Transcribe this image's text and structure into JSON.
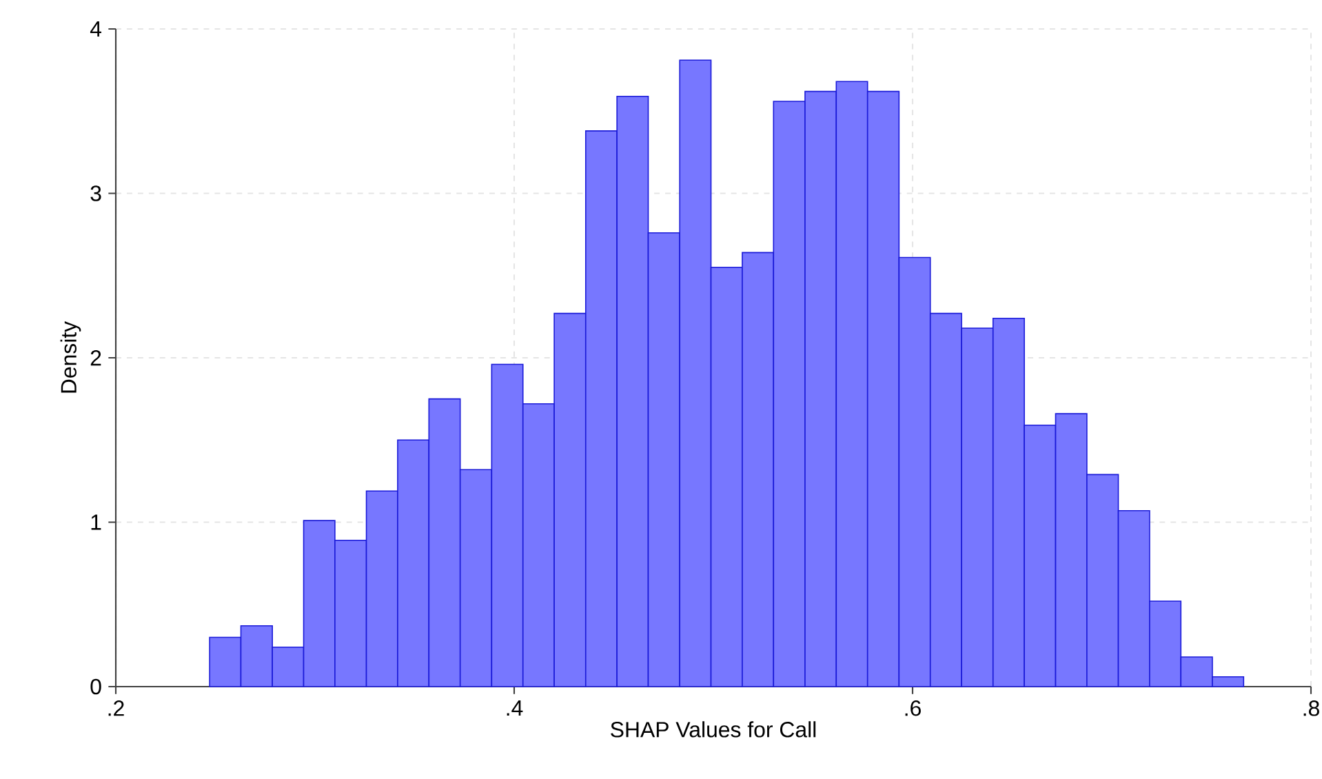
{
  "chart_data": {
    "type": "histogram",
    "xlabel": "SHAP Values for Call",
    "ylabel": "Density",
    "color": "#7777ff",
    "bins": [
      0.2471,
      0.2628,
      0.2786,
      0.2943,
      0.31,
      0.3258,
      0.3415,
      0.3572,
      0.3729,
      0.3887,
      0.4044,
      0.4201,
      0.4359,
      0.4516,
      0.4673,
      0.4831,
      0.4988,
      0.5145,
      0.5302,
      0.546,
      0.5617,
      0.5774,
      0.5932,
      0.6089,
      0.6246,
      0.6404,
      0.6561,
      0.6718,
      0.6875,
      0.7033,
      0.719,
      0.7347,
      0.7505,
      0.7662
    ],
    "values": [
      0.3,
      0.37,
      0.24,
      1.01,
      0.89,
      1.19,
      1.5,
      1.75,
      1.32,
      1.96,
      1.72,
      2.27,
      3.38,
      3.59,
      2.76,
      3.81,
      2.55,
      2.64,
      3.56,
      3.62,
      3.68,
      3.62,
      2.61,
      2.27,
      2.18,
      2.24,
      1.59,
      1.66,
      1.29,
      1.07,
      0.52,
      0.18,
      0.06
    ],
    "xlim": [
      0.2,
      0.8
    ],
    "ylim": [
      0,
      4
    ],
    "xticks": [
      {
        "value": 0.2,
        "label": ".2"
      },
      {
        "value": 0.4,
        "label": ".4"
      },
      {
        "value": 0.6,
        "label": ".6"
      },
      {
        "value": 0.8,
        "label": ".8"
      }
    ],
    "yticks": [
      0,
      1,
      2,
      3,
      4
    ],
    "grid": true
  }
}
